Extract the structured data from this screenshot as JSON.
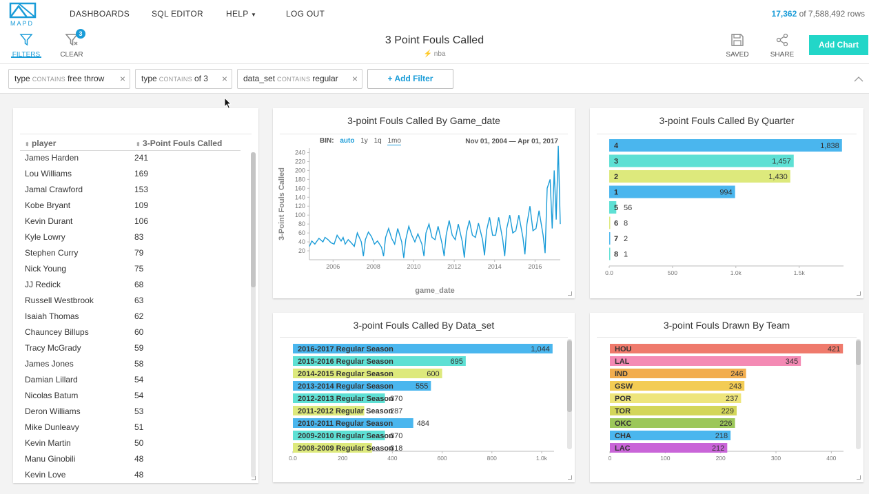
{
  "nav": {
    "dashboards": "DASHBOARDS",
    "sql_editor": "SQL EDITOR",
    "help": "HELP",
    "logout": "LOG OUT"
  },
  "rows": {
    "filtered": "17,362",
    "total_text": "of 7,588,492 rows"
  },
  "toolbar": {
    "filters": "FILTERS",
    "clear": "CLEAR",
    "clear_badge": "3",
    "saved": "SAVED",
    "share": "SHARE",
    "add_chart": "Add Chart"
  },
  "dashboard": {
    "title": "3 Point Fouls Called",
    "source": "nba"
  },
  "filters": [
    {
      "field": "type",
      "op": "CONTAINS",
      "value": "free throw"
    },
    {
      "field": "type",
      "op": "CONTAINS",
      "value": "of 3"
    },
    {
      "field": "data_set",
      "op": "CONTAINS",
      "value": "regular"
    }
  ],
  "add_filter": "+ Add Filter",
  "accent": "#1a9cd8",
  "table": {
    "col1": "player",
    "col2": "3-Point Fouls Called",
    "rows": [
      [
        "James Harden",
        "241"
      ],
      [
        "Lou Williams",
        "169"
      ],
      [
        "Jamal Crawford",
        "153"
      ],
      [
        "Kobe Bryant",
        "109"
      ],
      [
        "Kevin Durant",
        "106"
      ],
      [
        "Kyle Lowry",
        "83"
      ],
      [
        "Stephen Curry",
        "79"
      ],
      [
        "Nick Young",
        "75"
      ],
      [
        "JJ Redick",
        "68"
      ],
      [
        "Russell Westbrook",
        "63"
      ],
      [
        "Isaiah Thomas",
        "62"
      ],
      [
        "Chauncey Billups",
        "60"
      ],
      [
        "Tracy McGrady",
        "59"
      ],
      [
        "James Jones",
        "58"
      ],
      [
        "Damian Lillard",
        "54"
      ],
      [
        "Nicolas Batum",
        "54"
      ],
      [
        "Deron Williams",
        "53"
      ],
      [
        "Mike Dunleavy",
        "51"
      ],
      [
        "Kevin Martin",
        "50"
      ],
      [
        "Manu Ginobili",
        "48"
      ],
      [
        "Kevin Love",
        "48"
      ]
    ]
  },
  "chart_data": [
    {
      "type": "line",
      "title": "3-point Fouls Called By Game_date",
      "xlabel": "game_date",
      "ylabel": "3-Point Fouls Called",
      "bin_label": "BIN:",
      "bins": [
        "auto",
        "1y",
        "1q",
        "1mo"
      ],
      "bin_selected": "auto",
      "range_start": "Nov 01, 2004",
      "range_end": "Apr 01, 2017",
      "yticks": [
        20,
        40,
        60,
        80,
        100,
        120,
        140,
        160,
        180,
        200,
        220,
        240
      ],
      "xticks": [
        "2006",
        "2008",
        "2010",
        "2012",
        "2014",
        "2016"
      ],
      "ylim": [
        0,
        250
      ],
      "xlim": [
        2004.83,
        2017.25
      ],
      "x": [
        2004.83,
        2004.95,
        2005.1,
        2005.3,
        2005.5,
        2005.6,
        2005.75,
        2005.9,
        2006.05,
        2006.2,
        2006.4,
        2006.5,
        2006.6,
        2006.75,
        2006.9,
        2007.05,
        2007.2,
        2007.4,
        2007.5,
        2007.6,
        2007.75,
        2007.9,
        2008.05,
        2008.2,
        2008.4,
        2008.5,
        2008.6,
        2008.75,
        2008.9,
        2009.05,
        2009.2,
        2009.4,
        2009.5,
        2009.6,
        2009.75,
        2009.9,
        2010.05,
        2010.2,
        2010.4,
        2010.5,
        2010.6,
        2010.75,
        2010.9,
        2011.05,
        2011.2,
        2011.4,
        2011.5,
        2011.6,
        2011.75,
        2011.9,
        2012.05,
        2012.2,
        2012.4,
        2012.5,
        2012.6,
        2012.75,
        2012.9,
        2013.05,
        2013.2,
        2013.4,
        2013.5,
        2013.6,
        2013.75,
        2013.9,
        2014.05,
        2014.2,
        2014.4,
        2014.5,
        2014.6,
        2014.75,
        2014.9,
        2015.05,
        2015.2,
        2015.4,
        2015.5,
        2015.6,
        2015.75,
        2015.9,
        2016.05,
        2016.2,
        2016.4,
        2016.5,
        2016.6,
        2016.75,
        2016.85,
        2016.95,
        2017.05,
        2017.15,
        2017.25
      ],
      "y": [
        30,
        42,
        35,
        48,
        40,
        50,
        45,
        38,
        35,
        55,
        42,
        50,
        35,
        45,
        38,
        30,
        60,
        40,
        8,
        45,
        62,
        52,
        35,
        42,
        28,
        8,
        50,
        70,
        48,
        35,
        70,
        40,
        4,
        45,
        75,
        55,
        40,
        58,
        35,
        8,
        60,
        80,
        50,
        45,
        75,
        35,
        8,
        55,
        88,
        55,
        45,
        80,
        40,
        5,
        60,
        88,
        55,
        50,
        82,
        45,
        10,
        65,
        95,
        55,
        55,
        95,
        45,
        8,
        70,
        100,
        60,
        65,
        100,
        50,
        12,
        80,
        120,
        65,
        70,
        110,
        55,
        15,
        160,
        180,
        70,
        200,
        90,
        255,
        80
      ]
    },
    {
      "type": "bar",
      "orientation": "horizontal",
      "title": "3-point Fouls Called By Quarter",
      "categories": [
        "4",
        "3",
        "2",
        "1",
        "5",
        "6",
        "7",
        "8"
      ],
      "values": [
        1838,
        1457,
        1430,
        994,
        56,
        8,
        2,
        1
      ],
      "value_labels": [
        "1,838",
        "1,457",
        "1,430",
        "994",
        "56",
        "8",
        "2",
        "1"
      ],
      "colors": [
        "#4ab6ee",
        "#5ee0d4",
        "#dde97c",
        "#4ab6ee",
        "#5ee0d4",
        "#dde97c",
        "#4ab6ee",
        "#5ee0d4"
      ],
      "xticks": [
        "0.0",
        "500",
        "1.0k",
        "1.5k"
      ],
      "xtick_values": [
        0,
        500,
        1000,
        1500
      ],
      "xlim": [
        0,
        1850
      ]
    },
    {
      "type": "bar",
      "orientation": "horizontal",
      "title": "3-point Fouls Called By Data_set",
      "categories": [
        "2016-2017 Regular Season",
        "2015-2016 Regular Season",
        "2014-2015 Regular Season",
        "2013-2014 Regular Season",
        "2012-2013 Regular Season",
        "2011-2012 Regular Season",
        "2010-2011 Regular Season",
        "2009-2010 Regular Season",
        "2008-2009 Regular Season"
      ],
      "values": [
        1044,
        695,
        600,
        555,
        370,
        287,
        484,
        370,
        318
      ],
      "value_labels": [
        "1,044",
        "695",
        "600",
        "555",
        "370",
        "287",
        "484",
        "370",
        "318"
      ],
      "colors": [
        "#4ab6ee",
        "#5ee0d4",
        "#dde97c",
        "#4ab6ee",
        "#5ee0d4",
        "#dde97c",
        "#4ab6ee",
        "#5ee0d4",
        "#dde97c"
      ],
      "xticks": [
        "0.0",
        "200",
        "400",
        "600",
        "800",
        "1.0k"
      ],
      "xtick_values": [
        0,
        200,
        400,
        600,
        800,
        1000
      ],
      "xlim": [
        0,
        1050
      ]
    },
    {
      "type": "bar",
      "orientation": "horizontal",
      "title": "3-point Fouls Drawn By Team",
      "categories": [
        "HOU",
        "LAL",
        "IND",
        "GSW",
        "POR",
        "TOR",
        "OKC",
        "CHA",
        "LAC"
      ],
      "values": [
        421,
        345,
        246,
        243,
        237,
        229,
        226,
        218,
        212
      ],
      "value_labels": [
        "421",
        "345",
        "246",
        "243",
        "237",
        "229",
        "226",
        "218",
        "212"
      ],
      "colors": [
        "#ef7a6c",
        "#f48ab4",
        "#f2ad4e",
        "#f3cc54",
        "#eee57c",
        "#d3d65a",
        "#9cc75a",
        "#4ab6ee",
        "#c965d8"
      ],
      "xticks": [
        "0",
        "100",
        "200",
        "300",
        "400"
      ],
      "xtick_values": [
        0,
        100,
        200,
        300,
        400
      ],
      "xlim": [
        0,
        422
      ]
    }
  ]
}
